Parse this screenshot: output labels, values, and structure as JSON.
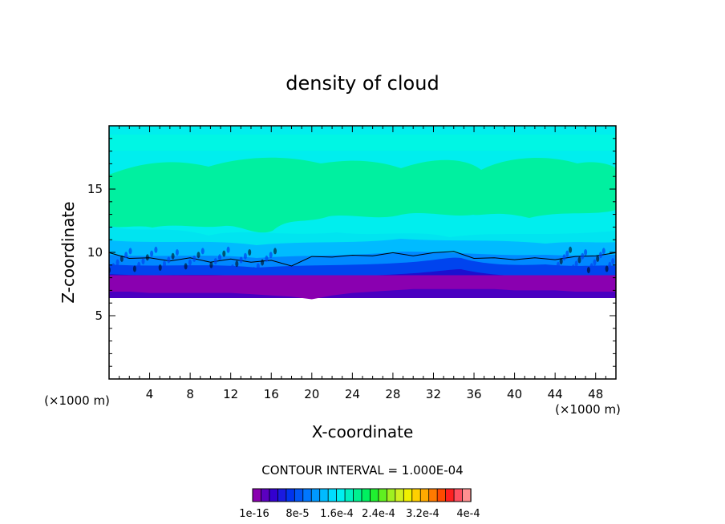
{
  "chart_data": {
    "type": "heatmap",
    "title": "density of cloud",
    "xlabel": "X-coordinate",
    "ylabel": "Z-coordinate",
    "x_units": "(×1000 m)",
    "xlim": [
      0,
      50
    ],
    "ylim": [
      0,
      20
    ],
    "xticks": [
      4,
      8,
      12,
      16,
      20,
      24,
      28,
      32,
      36,
      40,
      44,
      48
    ],
    "yticks": [
      5,
      10,
      15
    ],
    "contour_interval_text": "CONTOUR INTERVAL = 1.000E-04",
    "colorbar": {
      "labels": [
        "1e-16",
        "8e-5",
        "1.6e-4",
        "2.4e-4",
        "3.2e-4",
        "4e-4"
      ],
      "colors": [
        "#8a00b0",
        "#5b00c0",
        "#3300d0",
        "#1a1ae0",
        "#0033ee",
        "#0055f5",
        "#0077ff",
        "#0099ff",
        "#00bbff",
        "#00ddff",
        "#00f0f0",
        "#00f0c0",
        "#00f090",
        "#00f060",
        "#20f030",
        "#60f020",
        "#a0f020",
        "#d0f020",
        "#f0f000",
        "#ffd000",
        "#ffaa00",
        "#ff7a00",
        "#ff4a00",
        "#ff2020",
        "#ff5060",
        "#ff9090"
      ]
    },
    "cloud_top_contour": [
      [
        0,
        9.9
      ],
      [
        2,
        9.6
      ],
      [
        4,
        9.5
      ],
      [
        6,
        9.4
      ],
      [
        8,
        9.5
      ],
      [
        10,
        9.3
      ],
      [
        12,
        9.4
      ],
      [
        14,
        9.3
      ],
      [
        16,
        9.3
      ],
      [
        18,
        9.0
      ],
      [
        20,
        9.6
      ],
      [
        22,
        9.7
      ],
      [
        24,
        9.7
      ],
      [
        26,
        9.8
      ],
      [
        28,
        9.9
      ],
      [
        30,
        9.8
      ],
      [
        32,
        9.9
      ],
      [
        33,
        10.1
      ],
      [
        34,
        10.0
      ],
      [
        36,
        9.6
      ],
      [
        38,
        9.5
      ],
      [
        40,
        9.5
      ],
      [
        42,
        9.5
      ],
      [
        44,
        9.5
      ],
      [
        46,
        9.6
      ],
      [
        48,
        9.8
      ],
      [
        50,
        9.9
      ]
    ],
    "cloud_base": [
      [
        0,
        6.9
      ],
      [
        2,
        6.9
      ],
      [
        4,
        6.8
      ],
      [
        6,
        6.8
      ],
      [
        8,
        6.8
      ],
      [
        10,
        6.8
      ],
      [
        12,
        6.8
      ],
      [
        14,
        6.7
      ],
      [
        16,
        6.6
      ],
      [
        18,
        6.5
      ],
      [
        20,
        6.3
      ],
      [
        22,
        6.6
      ],
      [
        24,
        6.8
      ],
      [
        26,
        6.9
      ],
      [
        28,
        7.0
      ],
      [
        30,
        7.1
      ],
      [
        32,
        7.1
      ],
      [
        34,
        7.1
      ],
      [
        36,
        7.1
      ],
      [
        38,
        7.1
      ],
      [
        40,
        7.0
      ],
      [
        42,
        7.0
      ],
      [
        44,
        7.0
      ],
      [
        46,
        6.9
      ],
      [
        48,
        6.9
      ],
      [
        50,
        6.9
      ]
    ]
  }
}
